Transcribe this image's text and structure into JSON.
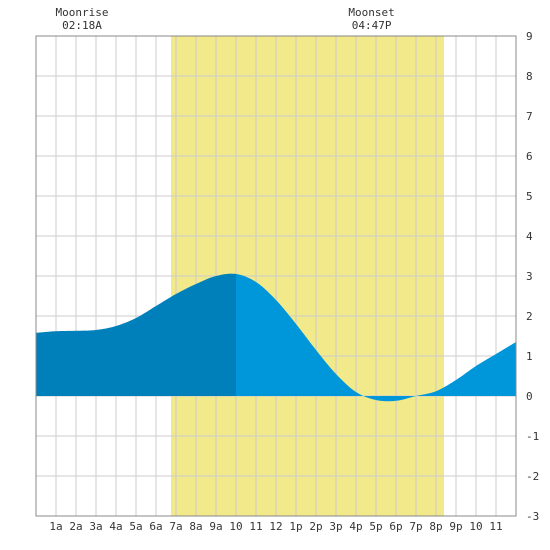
{
  "moon": {
    "rise_label": "Moonrise",
    "rise_time": "02:18A",
    "rise_hour": 2.3,
    "set_label": "Moonset",
    "set_time": "04:47P",
    "set_hour": 16.78
  },
  "chart_data": {
    "type": "area",
    "title": "",
    "xlabel": "",
    "ylabel": "",
    "xlim": [
      0,
      24
    ],
    "ylim": [
      -3,
      9
    ],
    "grid": true,
    "x_ticks": [
      {
        "x": 1,
        "label": "1a"
      },
      {
        "x": 2,
        "label": "2a"
      },
      {
        "x": 3,
        "label": "3a"
      },
      {
        "x": 4,
        "label": "4a"
      },
      {
        "x": 5,
        "label": "5a"
      },
      {
        "x": 6,
        "label": "6a"
      },
      {
        "x": 7,
        "label": "7a"
      },
      {
        "x": 8,
        "label": "8a"
      },
      {
        "x": 9,
        "label": "9a"
      },
      {
        "x": 10,
        "label": "10"
      },
      {
        "x": 11,
        "label": "11"
      },
      {
        "x": 12,
        "label": "12"
      },
      {
        "x": 13,
        "label": "1p"
      },
      {
        "x": 14,
        "label": "2p"
      },
      {
        "x": 15,
        "label": "3p"
      },
      {
        "x": 16,
        "label": "4p"
      },
      {
        "x": 17,
        "label": "5p"
      },
      {
        "x": 18,
        "label": "6p"
      },
      {
        "x": 19,
        "label": "7p"
      },
      {
        "x": 20,
        "label": "8p"
      },
      {
        "x": 21,
        "label": "9p"
      },
      {
        "x": 22,
        "label": "10"
      },
      {
        "x": 23,
        "label": "11"
      }
    ],
    "y_ticks": [
      -3,
      -2,
      -1,
      0,
      1,
      2,
      3,
      4,
      5,
      6,
      7,
      8,
      9
    ],
    "daylight": {
      "start": 6.75,
      "end": 20.4,
      "color": "#f2e98a"
    },
    "split_hour": 10,
    "colors": {
      "before": "#0080bb",
      "after": "#0096da",
      "grid": "#cccccc",
      "frame": "#888888"
    },
    "series": [
      {
        "x": [
          0,
          1,
          2,
          3,
          4,
          5,
          6,
          7,
          8,
          9,
          10,
          11,
          12,
          13,
          14,
          15,
          16,
          17,
          18,
          19,
          20,
          21,
          22,
          23,
          24
        ],
        "y": [
          1.58,
          1.62,
          1.63,
          1.65,
          1.75,
          1.95,
          2.25,
          2.55,
          2.8,
          3.0,
          3.05,
          2.85,
          2.4,
          1.8,
          1.15,
          0.55,
          0.1,
          -0.1,
          -0.12,
          0.0,
          0.12,
          0.4,
          0.75,
          1.05,
          1.35
        ]
      }
    ]
  }
}
